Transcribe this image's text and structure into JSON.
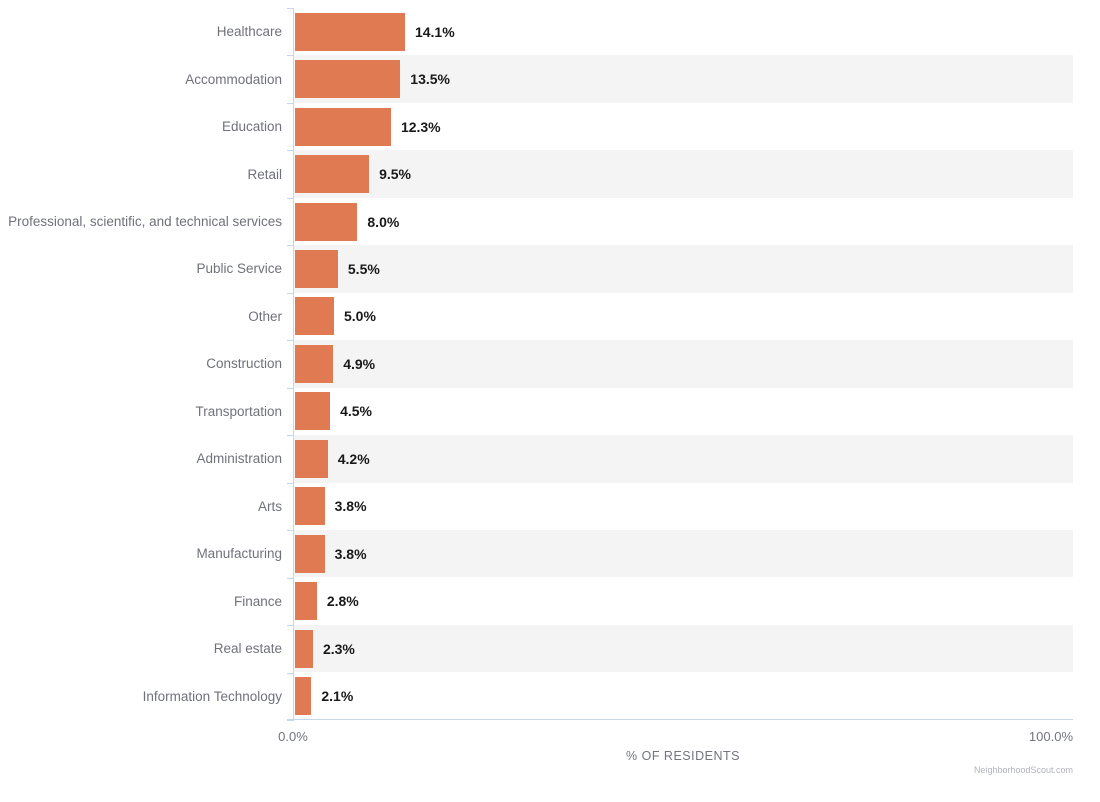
{
  "chart_data": {
    "type": "bar",
    "orientation": "horizontal",
    "categories": [
      "Healthcare",
      "Accommodation",
      "Education",
      "Retail",
      "Professional, scientific, and technical services",
      "Public Service",
      "Other",
      "Construction",
      "Transportation",
      "Administration",
      "Arts",
      "Manufacturing",
      "Finance",
      "Real estate",
      "Information Technology"
    ],
    "values": [
      14.1,
      13.5,
      12.3,
      9.5,
      8.0,
      5.5,
      5.0,
      4.9,
      4.5,
      4.2,
      3.8,
      3.8,
      2.8,
      2.3,
      2.1
    ],
    "value_labels": [
      "14.1%",
      "13.5%",
      "12.3%",
      "9.5%",
      "8.0%",
      "5.5%",
      "5.0%",
      "4.9%",
      "4.5%",
      "4.2%",
      "3.8%",
      "3.8%",
      "2.8%",
      "2.3%",
      "2.1%"
    ],
    "title": "",
    "xlabel": "% OF RESIDENTS",
    "ylabel": "",
    "xlim": [
      0,
      100
    ],
    "x_tick_labels": [
      "0.0%",
      "100.0%"
    ],
    "grid": false,
    "legend": null,
    "bar_color": "#e07a52",
    "stripe_color": "#f4f4f4",
    "axis_color": "#c7d6e8",
    "striped_row_indices": [
      1,
      3,
      5,
      7,
      9,
      11,
      13
    ]
  },
  "watermark": "NeighborhoodScout.com"
}
